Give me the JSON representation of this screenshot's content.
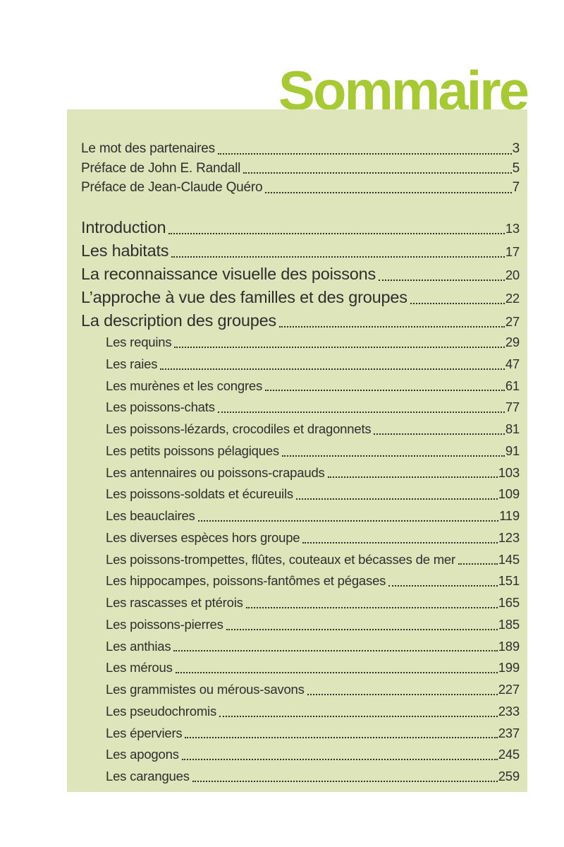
{
  "page": {
    "title": "Sommaire",
    "title_color": "#a8c936",
    "box_color": "#dfe5bb",
    "text_color": "#2e2e2e"
  },
  "toc": {
    "front_matter": [
      {
        "label": "Le mot des partenaires",
        "page": "3"
      },
      {
        "label": "Préface de John E. Randall",
        "page": "5"
      },
      {
        "label": "Préface de Jean-Claude Quéro",
        "page": "7"
      }
    ],
    "sections": [
      {
        "label": "Introduction",
        "page": "13"
      },
      {
        "label": "Les habitats",
        "page": "17"
      },
      {
        "label": "La reconnaissance visuelle des poissons",
        "page": "20"
      },
      {
        "label": "L’approche à vue des familles et des groupes",
        "page": "22"
      },
      {
        "label": "La description des groupes",
        "page": "27"
      }
    ],
    "groups": [
      {
        "label": "Les requins",
        "page": "29"
      },
      {
        "label": "Les raies",
        "page": "47"
      },
      {
        "label": "Les murènes et les congres",
        "page": "61"
      },
      {
        "label": "Les poissons-chats",
        "page": "77"
      },
      {
        "label": "Les poissons-lézards, crocodiles et dragonnets",
        "page": "81"
      },
      {
        "label": "Les petits poissons pélagiques",
        "page": "91"
      },
      {
        "label": "Les antennaires ou poissons-crapauds",
        "page": "103"
      },
      {
        "label": "Les poissons-soldats et écureuils",
        "page": "109"
      },
      {
        "label": "Les beauclaires",
        "page": "119"
      },
      {
        "label": "Les diverses espèces hors groupe",
        "page": "123"
      },
      {
        "label": "Les poissons-trompettes, flûtes, couteaux et bécasses de mer",
        "page": "145"
      },
      {
        "label": "Les hippocampes, poissons-fantômes et pégases",
        "page": "151"
      },
      {
        "label": "Les rascasses et ptérois",
        "page": "165"
      },
      {
        "label": "Les poissons-pierres",
        "page": "185"
      },
      {
        "label": "Les anthias",
        "page": "189"
      },
      {
        "label": "Les mérous",
        "page": "199"
      },
      {
        "label": "Les grammistes ou mérous-savons",
        "page": "227"
      },
      {
        "label": "Les pseudochromis",
        "page": "233"
      },
      {
        "label": "Les éperviers",
        "page": "237"
      },
      {
        "label": "Les apogons",
        "page": "245"
      },
      {
        "label": "Les carangues",
        "page": "259"
      }
    ]
  }
}
